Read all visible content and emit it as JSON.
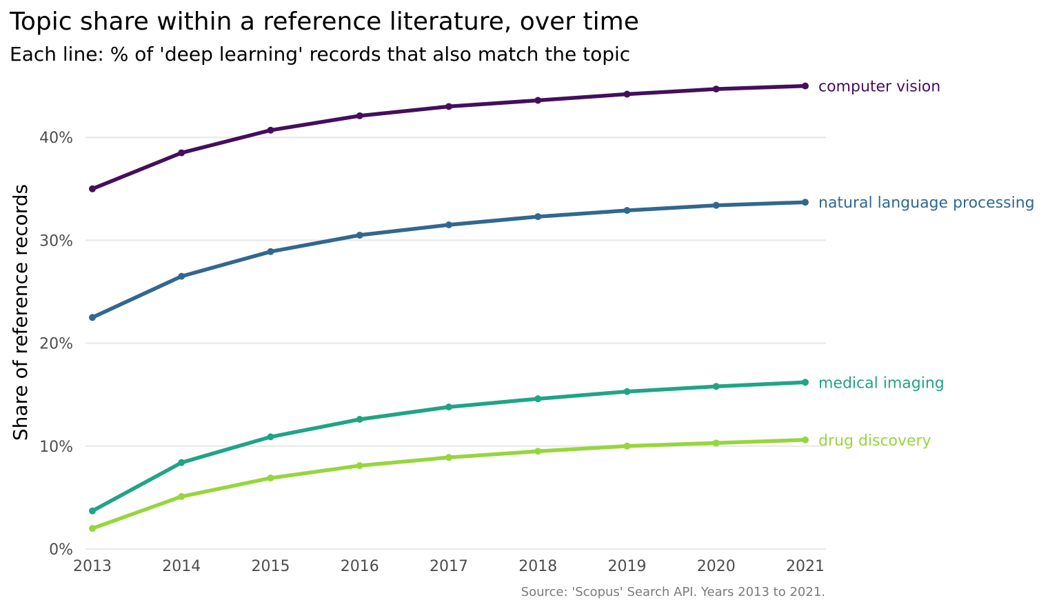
{
  "chart_data": {
    "type": "line",
    "title": "Topic share within a reference literature, over time",
    "subtitle": "Each line: % of 'deep learning' records that also match the topic",
    "ylabel": "Share of reference records",
    "xlabel": "",
    "caption": "Source: 'Scopus' Search API. Years 2013 to 2021.",
    "x": [
      2013,
      2014,
      2015,
      2016,
      2017,
      2018,
      2019,
      2020,
      2021
    ],
    "x_tick_labels": [
      "2013",
      "2014",
      "2015",
      "2016",
      "2017",
      "2018",
      "2019",
      "2020",
      "2021"
    ],
    "y_ticks": [
      0,
      10,
      20,
      30,
      40
    ],
    "y_tick_labels": [
      "0%",
      "10%",
      "20%",
      "30%",
      "40%"
    ],
    "ylim": [
      0,
      45
    ],
    "xlim": [
      2013,
      2021
    ],
    "grid": "horizontal",
    "legend": "direct labels at line ends",
    "series": [
      {
        "name": "computer vision",
        "color": "#440f5c",
        "values": [
          35.0,
          38.5,
          40.7,
          42.1,
          43.0,
          43.6,
          44.2,
          44.7,
          45.0
        ]
      },
      {
        "name": "natural language processing",
        "color": "#31688e",
        "values": [
          22.5,
          26.5,
          28.9,
          30.5,
          31.5,
          32.3,
          32.9,
          33.4,
          33.7
        ]
      },
      {
        "name": "medical imaging",
        "color": "#20a486",
        "values": [
          3.7,
          8.4,
          10.9,
          12.6,
          13.8,
          14.6,
          15.3,
          15.8,
          16.2
        ]
      },
      {
        "name": "drug discovery",
        "color": "#96d63d",
        "values": [
          2.0,
          5.1,
          6.9,
          8.1,
          8.9,
          9.5,
          10.0,
          10.3,
          10.6
        ]
      }
    ]
  }
}
